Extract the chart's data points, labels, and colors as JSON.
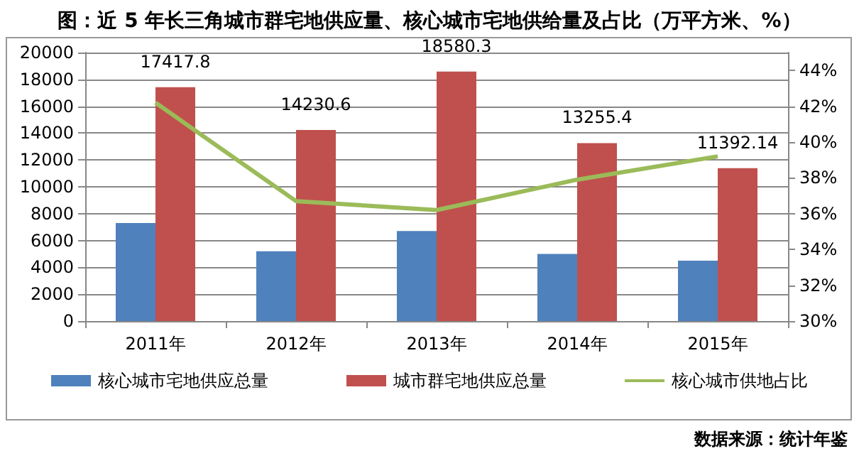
{
  "chart_data": {
    "type": "bar",
    "title": "图：近 5 年长三角城市群宅地供应量、核心城市宅地供给量及占比（万平方米、%）",
    "categories": [
      "2011年",
      "2012年",
      "2013年",
      "2014年",
      "2015年"
    ],
    "series": [
      {
        "name": "核心城市宅地供应总量",
        "color": "#4f81bd",
        "values": [
          7300,
          5200,
          6700,
          5000,
          4500
        ]
      },
      {
        "name": "城市群宅地供应总量",
        "color": "#c0504d",
        "values": [
          17417.8,
          14230.6,
          18580.3,
          13255.4,
          11392.14
        ],
        "value_labels": [
          "17417.8",
          "14230.6",
          "18580.3",
          "13255.4",
          "11392.14"
        ]
      },
      {
        "name": "核心城市供地占比",
        "type": "line",
        "axis": "y2",
        "color": "#9bbb59",
        "values": [
          42.2,
          36.7,
          36.2,
          37.9,
          39.2
        ]
      }
    ],
    "ylim": [
      0,
      20000
    ],
    "yticks": [
      0,
      2000,
      4000,
      6000,
      8000,
      10000,
      12000,
      14000,
      16000,
      18000,
      20000
    ],
    "y2lim": [
      30,
      45
    ],
    "y2ticks": [
      {
        "value": 30,
        "label": "30%"
      },
      {
        "value": 32,
        "label": "32%"
      },
      {
        "value": 34,
        "label": "34%"
      },
      {
        "value": 36,
        "label": "36%"
      },
      {
        "value": 38,
        "label": "38%"
      },
      {
        "value": 40,
        "label": "40%"
      },
      {
        "value": 42,
        "label": "42%"
      },
      {
        "value": 44,
        "label": "44%"
      }
    ],
    "grid": "y",
    "legend": "bottom",
    "marker": "none",
    "line_style": "solid",
    "annotations": [
      "数据来源：统计年鉴"
    ]
  }
}
